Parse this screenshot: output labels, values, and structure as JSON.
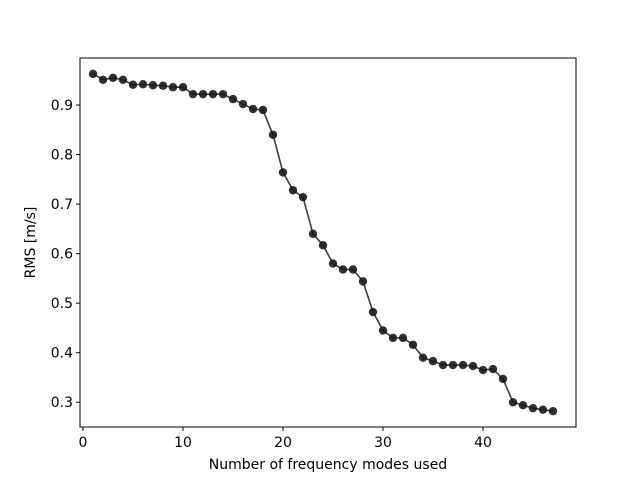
{
  "chart_data": {
    "type": "line",
    "title": "",
    "xlabel": "Number of frequency modes used",
    "ylabel": "RMS [m/s]",
    "xlim": [
      -0.3,
      49.3
    ],
    "ylim": [
      0.25,
      0.995
    ],
    "xticks": [
      0,
      10,
      20,
      30,
      40
    ],
    "yticks": [
      0.3,
      0.4,
      0.5,
      0.6,
      0.7,
      0.8,
      0.9
    ],
    "xtick_labels": [
      "0",
      "10",
      "20",
      "30",
      "40"
    ],
    "ytick_labels": [
      "0.3",
      "0.4",
      "0.5",
      "0.6",
      "0.7",
      "0.8",
      "0.9"
    ],
    "grid": false,
    "legend": false,
    "series": [
      {
        "color": "#1a1a1a",
        "marker": "circle",
        "x": [
          1,
          2,
          3,
          4,
          5,
          6,
          7,
          8,
          9,
          10,
          11,
          12,
          13,
          14,
          15,
          16,
          17,
          18,
          19,
          20,
          21,
          22,
          23,
          24,
          25,
          26,
          27,
          28,
          29,
          30,
          31,
          32,
          33,
          34,
          35,
          36,
          37,
          38,
          39,
          40,
          41,
          42,
          43,
          44,
          45,
          46,
          47
        ],
        "y": [
          0.963,
          0.951,
          0.955,
          0.951,
          0.941,
          0.942,
          0.94,
          0.939,
          0.936,
          0.936,
          0.922,
          0.922,
          0.922,
          0.922,
          0.912,
          0.902,
          0.892,
          0.89,
          0.84,
          0.764,
          0.728,
          0.714,
          0.64,
          0.617,
          0.58,
          0.568,
          0.568,
          0.544,
          0.482,
          0.445,
          0.43,
          0.43,
          0.416,
          0.39,
          0.383,
          0.375,
          0.375,
          0.375,
          0.373,
          0.365,
          0.367,
          0.347,
          0.3,
          0.294,
          0.288,
          0.285,
          0.282
        ]
      }
    ]
  }
}
